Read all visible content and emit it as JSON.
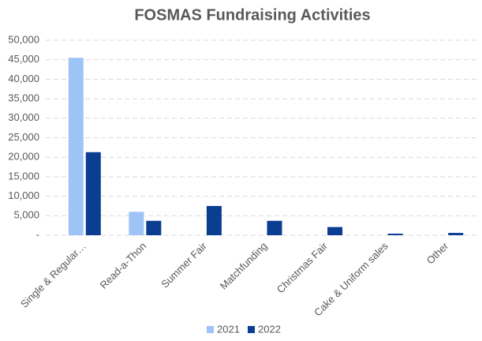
{
  "chart_data": {
    "type": "bar",
    "title": "FOSMAS Fundraising Activities",
    "categories": [
      "Single & Regular…",
      "Read-a-Thon",
      "Summer Fair",
      "Matchfunding",
      "Christmas Fair",
      "Cake & Uniform sales",
      "Other"
    ],
    "series": [
      {
        "name": "2021",
        "color": "#9dc3f7",
        "values": [
          45500,
          6000,
          null,
          null,
          null,
          null,
          null
        ]
      },
      {
        "name": "2022",
        "color": "#0b3d91",
        "values": [
          21300,
          3700,
          7500,
          3700,
          2100,
          400,
          600
        ]
      }
    ],
    "ylim": [
      0,
      50000
    ],
    "yticks": [
      {
        "value": 0,
        "label": "-"
      },
      {
        "value": 5000,
        "label": "5,000"
      },
      {
        "value": 10000,
        "label": "10,000"
      },
      {
        "value": 15000,
        "label": "15,000"
      },
      {
        "value": 20000,
        "label": "20,000"
      },
      {
        "value": 25000,
        "label": "25,000"
      },
      {
        "value": 30000,
        "label": "30,000"
      },
      {
        "value": 35000,
        "label": "35,000"
      },
      {
        "value": 40000,
        "label": "40,000"
      },
      {
        "value": 45000,
        "label": "45,000"
      },
      {
        "value": 50000,
        "label": "50,000"
      }
    ],
    "grid": true,
    "legend": "bottom"
  }
}
